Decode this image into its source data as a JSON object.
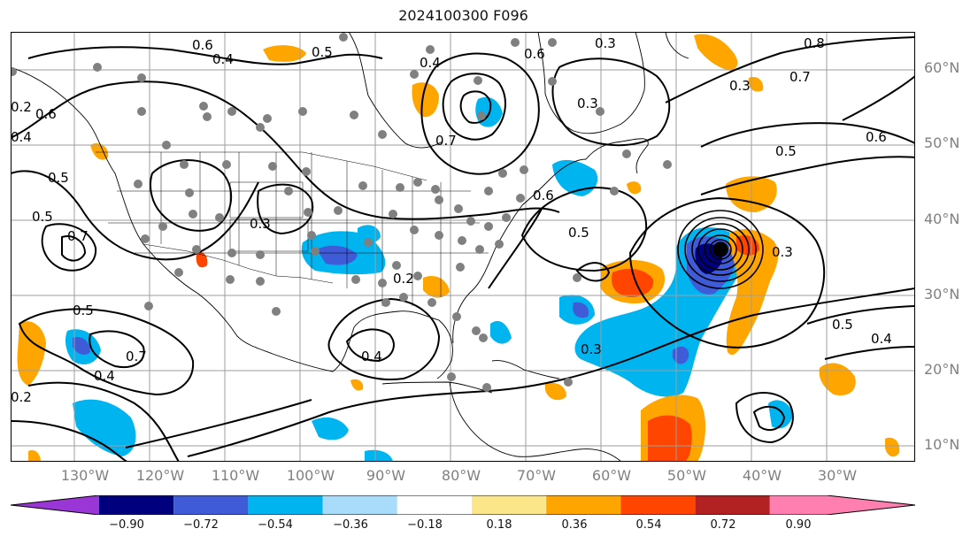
{
  "title": "2024100300 F096",
  "lat_labels": [
    "60°N",
    "50°N",
    "40°N",
    "30°N",
    "20°N",
    "10°N"
  ],
  "lon_labels": [
    "130°W",
    "120°W",
    "110°W",
    "100°W",
    "90°W",
    "80°W",
    "70°W",
    "60°W",
    "50°W",
    "40°W",
    "30°W"
  ],
  "colorbar": {
    "ticks": [
      "−0.90",
      "−0.72",
      "−0.54",
      "−0.36",
      "−0.18",
      "0.18",
      "0.36",
      "0.54",
      "0.72",
      "0.90"
    ],
    "colors": [
      "#9a35d6",
      "#00007f",
      "#3f5bd8",
      "#00b4f0",
      "#a8dcfa",
      "#ffffff",
      "#fce68a",
      "#ffa500",
      "#ff4500",
      "#b22222",
      "#ff7fb0"
    ]
  },
  "contour_labels": [
    "0.6",
    "0.4",
    "0.5",
    "0.4",
    "0.5",
    "0.3",
    "0.6",
    "0.7",
    "0.8",
    "0.7",
    "0.6",
    "0.5",
    "0.5",
    "0.7",
    "0.3",
    "0.2",
    "0.4",
    "0.3",
    "0.5",
    "0.6",
    "0.7",
    "0.2",
    "0.5",
    "0.4",
    "0.4",
    "0.3",
    "0.2",
    "0.5",
    "0.6",
    "0.3",
    "0.4",
    "0.3"
  ]
}
